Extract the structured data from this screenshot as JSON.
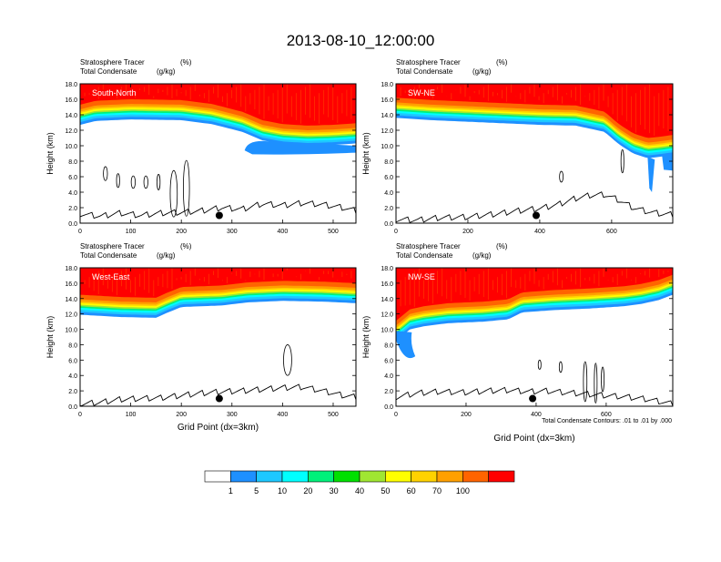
{
  "figure": {
    "title": "2013-08-10_12:00:00",
    "contour_note": "Total Condensate Contours: .01 to .01 by .000"
  },
  "colorbar": {
    "colors": [
      "#ffffff",
      "#1e90ff",
      "#1ec8ff",
      "#00ffff",
      "#00f07a",
      "#00e000",
      "#a0e632",
      "#ffff00",
      "#ffd200",
      "#ffa000",
      "#ff6400",
      "#ff0000"
    ],
    "labels": [
      "1",
      "5",
      "10",
      "20",
      "30",
      "40",
      "50",
      "60",
      "70",
      "100"
    ]
  },
  "chart_data": [
    {
      "type": "heatmap",
      "panel_label": "South-North",
      "subtitle_line1": "Stratosphere Tracer",
      "subtitle_unit1": "(%)",
      "subtitle_line2": "Total Condensate",
      "subtitle_unit2": "(g/kg)",
      "xlabel": "",
      "ylabel": "Height (km)",
      "xlim": [
        0,
        545
      ],
      "ylim": [
        0,
        18
      ],
      "xticks": [
        0,
        100,
        200,
        300,
        400,
        500
      ],
      "yticks": [
        "0.0",
        "2.0",
        "4.0",
        "6.0",
        "8.0",
        "10.0",
        "12.0",
        "14.0",
        "16.0",
        "18.0"
      ],
      "tracer_base_x": [
        0,
        30,
        100,
        200,
        260,
        320,
        360,
        400,
        450,
        500,
        545
      ],
      "tracer_base_km": [
        12.7,
        13.2,
        13.4,
        13.3,
        12.8,
        11.8,
        10.7,
        10.2,
        10.0,
        10.1,
        10.3
      ],
      "terrain_x": [
        0,
        40,
        80,
        120,
        160,
        200,
        240,
        280,
        320,
        360,
        400,
        440,
        480,
        520,
        545
      ],
      "terrain_km": [
        1.2,
        0.9,
        1.3,
        1.0,
        1.3,
        1.4,
        1.6,
        2.0,
        1.8,
        2.5,
        2.3,
        2.6,
        2.4,
        2.0,
        1.6
      ],
      "marker_x": 275,
      "marker_km": 1.0
    },
    {
      "type": "heatmap",
      "panel_label": "SW-NE",
      "subtitle_line1": "Stratosphere Tracer",
      "subtitle_unit1": "(%)",
      "subtitle_line2": "Total Condensate",
      "subtitle_unit2": "(g/kg)",
      "xlabel": "",
      "ylabel": "Height (km)",
      "xlim": [
        0,
        770
      ],
      "ylim": [
        0,
        18
      ],
      "xticks": [
        0,
        200,
        400,
        600
      ],
      "yticks": [
        "0.0",
        "2.0",
        "4.0",
        "6.0",
        "8.0",
        "10.0",
        "12.0",
        "14.0",
        "16.0",
        "18.0"
      ],
      "tracer_base_x": [
        0,
        100,
        200,
        300,
        400,
        500,
        580,
        620,
        660,
        700,
        740,
        770
      ],
      "tracer_base_km": [
        13.6,
        13.3,
        13.1,
        12.9,
        12.7,
        12.6,
        11.8,
        10.2,
        9.0,
        8.4,
        8.6,
        8.8
      ],
      "terrain_x": [
        0,
        60,
        120,
        200,
        280,
        340,
        400,
        450,
        500,
        540,
        580,
        620,
        660,
        700,
        740,
        770
      ],
      "terrain_km": [
        0.5,
        0.4,
        0.7,
        0.8,
        1.2,
        1.6,
        1.9,
        2.4,
        3.2,
        3.6,
        3.7,
        3.0,
        2.0,
        1.5,
        1.2,
        1.1
      ],
      "marker_x": 390,
      "marker_km": 1.0
    },
    {
      "type": "heatmap",
      "panel_label": "West-East",
      "subtitle_line1": "Stratosphere Tracer",
      "subtitle_unit1": "(%)",
      "subtitle_line2": "Total Condensate",
      "subtitle_unit2": "(g/kg)",
      "xlabel": "Grid Point (dx=3km)",
      "ylabel": "Height (km)",
      "xlim": [
        0,
        545
      ],
      "ylim": [
        0,
        18
      ],
      "xticks": [
        0,
        100,
        200,
        300,
        400,
        500
      ],
      "yticks": [
        "0.0",
        "2.0",
        "4.0",
        "6.0",
        "8.0",
        "10.0",
        "12.0",
        "14.0",
        "16.0",
        "18.0"
      ],
      "tracer_base_x": [
        0,
        80,
        150,
        170,
        200,
        280,
        330,
        400,
        480,
        545
      ],
      "tracer_base_km": [
        11.9,
        11.6,
        11.5,
        12.1,
        12.9,
        13.1,
        13.5,
        13.7,
        13.6,
        13.4
      ],
      "terrain_x": [
        0,
        40,
        80,
        120,
        160,
        200,
        240,
        280,
        320,
        360,
        400,
        440,
        480,
        520,
        545
      ],
      "terrain_km": [
        0.3,
        0.5,
        0.9,
        1.0,
        1.1,
        1.4,
        1.7,
        1.9,
        2.0,
        2.2,
        2.4,
        2.5,
        2.0,
        1.4,
        1.2
      ],
      "marker_x": 275,
      "marker_km": 1.0
    },
    {
      "type": "heatmap",
      "panel_label": "NW-SE",
      "subtitle_line1": "Stratosphere Tracer",
      "subtitle_unit1": "(%)",
      "subtitle_line2": "Total Condensate",
      "subtitle_unit2": "(g/kg)",
      "xlabel": "Grid Point (dx=3km)",
      "ylabel": "Height (km)",
      "xlim": [
        0,
        790
      ],
      "ylim": [
        0,
        18
      ],
      "xticks": [
        0,
        200,
        400,
        600
      ],
      "yticks": [
        "0.0",
        "2.0",
        "4.0",
        "6.0",
        "8.0",
        "10.0",
        "12.0",
        "14.0",
        "16.0",
        "18.0"
      ],
      "tracer_base_x": [
        0,
        40,
        80,
        150,
        250,
        320,
        360,
        450,
        550,
        650,
        700,
        750,
        790
      ],
      "tracer_base_km": [
        8.5,
        10.0,
        10.4,
        10.8,
        11.0,
        11.3,
        12.2,
        12.5,
        12.7,
        13.0,
        13.3,
        13.8,
        14.5
      ],
      "terrain_x": [
        0,
        60,
        120,
        200,
        260,
        320,
        380,
        430,
        480,
        540,
        600,
        660,
        720,
        790
      ],
      "terrain_km": [
        1.2,
        1.7,
        1.9,
        1.8,
        2.0,
        2.1,
        1.9,
        2.0,
        1.8,
        1.6,
        1.4,
        1.2,
        0.9,
        0.3
      ],
      "marker_x": 390,
      "marker_km": 1.0
    }
  ]
}
